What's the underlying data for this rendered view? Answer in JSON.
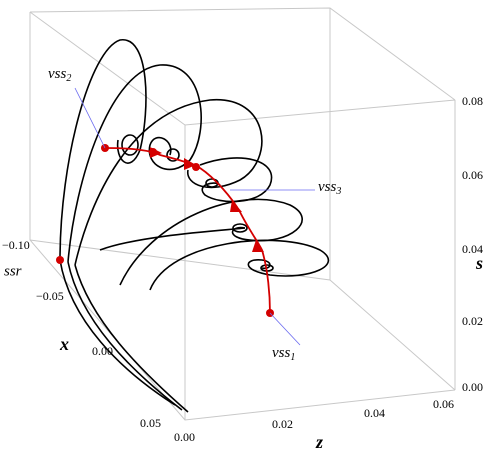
{
  "axes": {
    "x": {
      "label": "x",
      "ticks": [
        "−0.10",
        "−0.05",
        "0.00",
        "0.05"
      ]
    },
    "z": {
      "label": "z",
      "ticks": [
        "0.00",
        "0.02",
        "0.04",
        "0.06"
      ]
    },
    "s": {
      "label": "s",
      "ticks": [
        "0.08",
        "0.06",
        "0.04",
        "0.02",
        "0.00"
      ]
    }
  },
  "annotations": [
    {
      "text": "vss",
      "sub": "2"
    },
    {
      "text": "vss",
      "sub": "3"
    },
    {
      "text": "vss",
      "sub": "1"
    },
    {
      "text": "ssr"
    }
  ]
}
